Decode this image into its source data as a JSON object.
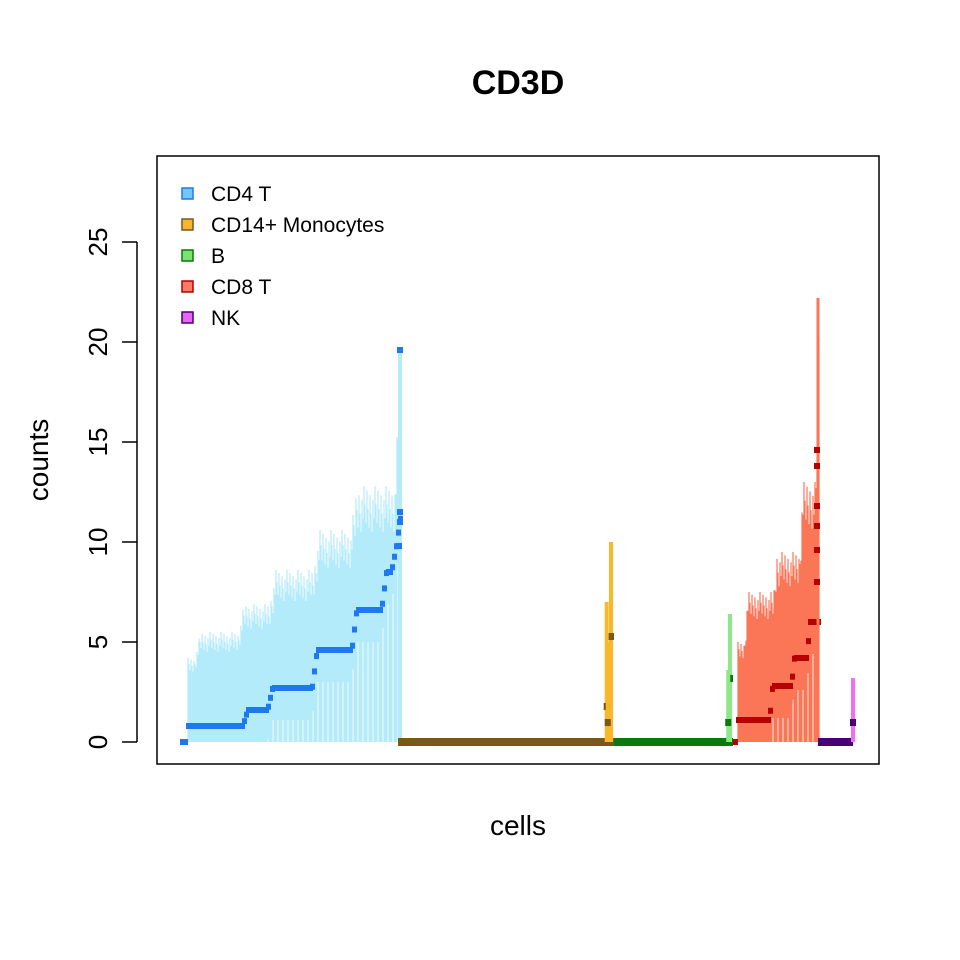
{
  "chart_data": {
    "type": "scatter",
    "title": "CD3D",
    "xlabel": "cells",
    "ylabel": "counts",
    "ylim": [
      -1.1,
      29.3
    ],
    "yticks": [
      0,
      5,
      10,
      15,
      20,
      25
    ],
    "ytick_labels": [
      "0",
      "5",
      "10",
      "15",
      "20",
      "25"
    ],
    "xticks": [],
    "grid": false,
    "legend_position": "top-left",
    "series": [
      {
        "name": "CD4 T",
        "cells": [
          0,
          23
        ],
        "range_color": "#b3ebfb",
        "point_color": "#1e78f0",
        "legend_fill": "#74c8f8",
        "legend_border": "#1e78f0",
        "segments": [
          {
            "n": 1,
            "y": 0
          },
          {
            "n": 12,
            "y": 0.8
          },
          {
            "n": 5,
            "y": 1.6
          },
          {
            "n": 9,
            "y": 2.7
          },
          {
            "n": 8,
            "y": 4.6
          },
          {
            "n": 6,
            "y": 6.6
          },
          {
            "n": 2,
            "y": 8.5
          },
          {
            "n": 1,
            "y": 9.8
          },
          {
            "n": 1,
            "y": 11.5
          }
        ],
        "upper": [
          {
            "n": 2,
            "y": 4.2
          },
          {
            "n": 7,
            "y": 5.5
          },
          {
            "n": 5,
            "y": 6.9
          },
          {
            "n": 7,
            "y": 8.6
          },
          {
            "n": 6,
            "y": 10.6
          },
          {
            "n": 7,
            "y": 12.8
          },
          {
            "n": 1,
            "y": 19.6
          }
        ],
        "outlier": 19.6
      },
      {
        "name": "CD14+ Monocytes",
        "cells": [
          0,
          0.93
        ],
        "range_color": "#f9b72a",
        "point_color": "#7c5817",
        "legend_fill": "#f8b531",
        "legend_border": "#7c5817",
        "segments": [
          {
            "n": 1,
            "y": 0
          }
        ],
        "peaks": [
          {
            "pos": 1.0,
            "top": 10,
            "point": 5.3
          },
          {
            "pos": 0.98,
            "top": 7,
            "point": 1.8
          },
          {
            "pos": 0.985,
            "top": 5,
            "point": 1.0
          }
        ]
      },
      {
        "name": "B",
        "cells": [
          0,
          0.93
        ],
        "range_color": "#8de985",
        "point_color": "#0a7a0a",
        "legend_fill": "#7be373",
        "legend_border": "#0a7a0a",
        "segments": [
          {
            "n": 1,
            "y": 0
          }
        ],
        "peaks": [
          {
            "pos": 1.0,
            "top": 6.4,
            "point": 3.2
          },
          {
            "pos": 0.985,
            "top": 3.6,
            "point": 1.0
          }
        ]
      },
      {
        "name": "CD8 T",
        "cells": [
          0,
          0.97
        ],
        "range_color": "#fb7557",
        "point_color": "#b70000",
        "legend_fill": "#fb7b66",
        "legend_border": "#b70000",
        "segments": [
          {
            "n": 1,
            "y": 0
          },
          {
            "n": 11,
            "y": 1.1
          },
          {
            "n": 7,
            "y": 2.8
          },
          {
            "n": 5,
            "y": 4.2
          },
          {
            "n": 4,
            "y": 6.0
          }
        ],
        "upper": [
          {
            "n": 3,
            "y": 5.0
          },
          {
            "n": 9,
            "y": 7.5
          },
          {
            "n": 8,
            "y": 9.5
          },
          {
            "n": 5,
            "y": 13.0
          },
          {
            "n": 1,
            "y": 22.2
          }
        ],
        "points_top": [
          8.0,
          9.6,
          10.8,
          11.8,
          13.8,
          14.6
        ]
      },
      {
        "name": "NK",
        "cells": [
          0,
          0.9
        ],
        "range_color": "#f36ef6",
        "point_color": "#4a0072",
        "legend_fill": "#e865f1",
        "legend_border": "#4a0072",
        "segments": [
          {
            "n": 1,
            "y": 0
          }
        ],
        "peaks": [
          {
            "pos": 1.0,
            "top": 3.2,
            "point": 1.0
          }
        ]
      }
    ]
  }
}
